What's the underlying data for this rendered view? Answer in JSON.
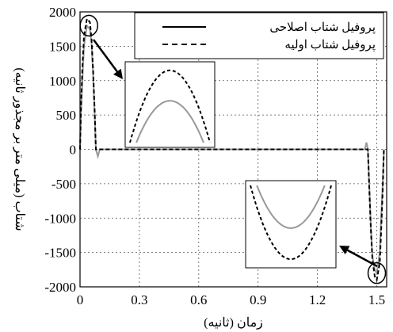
{
  "chart_data": {
    "type": "line",
    "xlabel": "زمان (ثانیه)",
    "ylabel": "شتاب (میلی متر بر مجذور ثانیه)",
    "xlim": [
      0,
      1.55
    ],
    "ylim": [
      -2000,
      2000
    ],
    "x_ticks": [
      "0",
      "0.3",
      "0.6",
      "0.9",
      "1.2",
      "1.5"
    ],
    "y_ticks": [
      "2000",
      "1500",
      "1000",
      "500",
      "0",
      "-500",
      "-1000",
      "-1500",
      "-2000"
    ],
    "grid": true,
    "legend_position": "top-right",
    "series": [
      {
        "name": "پروفیل شتاب اصلاحی",
        "color": "#999999",
        "style": "solid",
        "points": [
          [
            0,
            0
          ],
          [
            0.005,
            500
          ],
          [
            0.012,
            1000
          ],
          [
            0.02,
            1500
          ],
          [
            0.035,
            1800
          ],
          [
            0.05,
            1750
          ],
          [
            0.058,
            1550
          ],
          [
            0.066,
            1100
          ],
          [
            0.074,
            500
          ],
          [
            0.08,
            0
          ],
          [
            0.09,
            -100
          ],
          [
            0.1,
            0
          ],
          [
            0.11,
            0
          ],
          [
            1.42,
            0
          ],
          [
            1.44,
            0
          ],
          [
            1.448,
            100
          ],
          [
            1.455,
            0
          ],
          [
            1.462,
            -500
          ],
          [
            1.47,
            -1100
          ],
          [
            1.478,
            -1550
          ],
          [
            1.49,
            -1750
          ],
          [
            1.5,
            -1800
          ],
          [
            1.515,
            -1500
          ],
          [
            1.522,
            -1000
          ],
          [
            1.53,
            -500
          ],
          [
            1.536,
            0
          ]
        ]
      },
      {
        "name": "پروفیل شتاب اولیه",
        "color": "#000000",
        "style": "dashed",
        "points": [
          [
            0,
            0
          ],
          [
            0.005,
            600
          ],
          [
            0.012,
            1200
          ],
          [
            0.02,
            1650
          ],
          [
            0.035,
            1900
          ],
          [
            0.05,
            1850
          ],
          [
            0.058,
            1600
          ],
          [
            0.066,
            1150
          ],
          [
            0.074,
            550
          ],
          [
            0.08,
            0
          ],
          [
            0.1,
            0
          ],
          [
            1.455,
            0
          ],
          [
            1.462,
            -550
          ],
          [
            1.47,
            -1150
          ],
          [
            1.478,
            -1600
          ],
          [
            1.49,
            -1850
          ],
          [
            1.5,
            -1900
          ],
          [
            1.515,
            -1650
          ],
          [
            1.522,
            -1200
          ],
          [
            1.53,
            -600
          ],
          [
            1.536,
            0
          ]
        ]
      }
    ],
    "insets": [
      {
        "name": "zoom-peak",
        "marker_center": [
          0.045,
          1800
        ],
        "curves": {
          "modified": {
            "color": "#999999",
            "peak": 0.55,
            "halfwidth": 0.42
          },
          "initial": {
            "color": "#000000",
            "peak": 0.95,
            "halfwidth": 0.5
          }
        }
      },
      {
        "name": "zoom-trough",
        "marker_center": [
          1.5,
          -1800
        ],
        "curves": {
          "modified": {
            "color": "#999999",
            "peak": 0.55,
            "halfwidth": 0.42
          },
          "initial": {
            "color": "#000000",
            "peak": 0.95,
            "halfwidth": 0.5
          }
        }
      }
    ]
  }
}
